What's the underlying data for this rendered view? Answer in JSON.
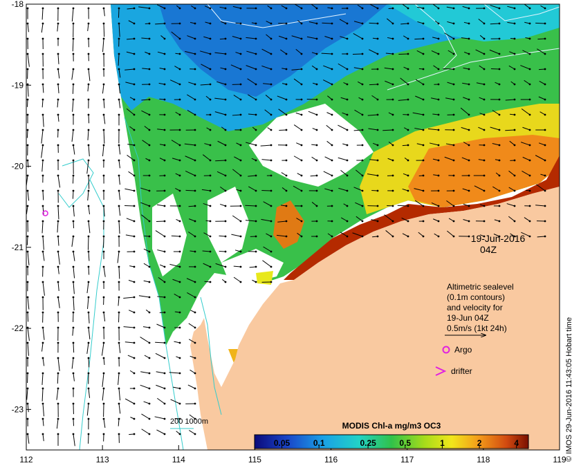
{
  "map": {
    "x_ticks": [
      "112",
      "113",
      "114",
      "115",
      "116",
      "117",
      "118",
      "119"
    ],
    "y_ticks": [
      "-18",
      "-19",
      "-20",
      "-21",
      "-22",
      "-23"
    ],
    "date_line1": "19-Jun-2016",
    "date_line2": "04Z",
    "legend_text": {
      "line1": "Altimetric sealevel",
      "line2": "(0.1m contours)",
      "line3": "and velocity for",
      "line4": "19-Jun 04Z",
      "line5": "0.5m/s (1kt 24h)"
    },
    "argo_label": "Argo",
    "drifter_label": "drifter",
    "bathy_label": "200  1000m",
    "colorbar": {
      "title": "MODIS Chl-a mg/m3 OC3",
      "tick_labels": [
        "0.05",
        "0.1",
        "0.25",
        "0.5",
        "1",
        "2",
        "4"
      ],
      "tick_values": [
        0.05,
        0.1,
        0.25,
        0.5,
        1,
        2,
        4
      ],
      "min": 0.03,
      "max": 5
    },
    "credit": "© IMOS 29-Jun-2016 11:43:05 Hobart time",
    "argo_float": {
      "lon": 112.25,
      "lat": -20.58
    },
    "colors": {
      "land": "#f9c9a0",
      "bathy": "#33cccc",
      "argo": "#e020e0",
      "chl_low": "#08306b",
      "chl_mid": "#22bb22",
      "chl_high": "#8b1a00"
    }
  }
}
